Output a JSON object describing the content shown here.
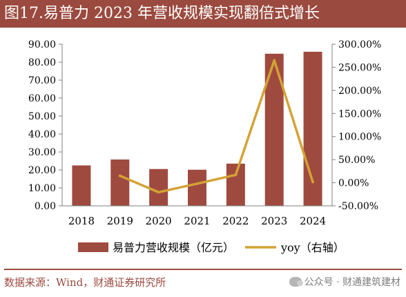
{
  "title": "图17.易普力 2023 年营收规模实现翻倍式增长",
  "source": "数据来源：Wind，财通证券研究所",
  "watermark": "公众号 · 财通建筑建材",
  "colors": {
    "bar": "#9f4a3f",
    "line": "#d4a235",
    "title_bg": "#9b4a3f"
  },
  "chart_data": {
    "type": "bar",
    "categories": [
      "2018",
      "2019",
      "2020",
      "2021",
      "2022",
      "2023",
      "2024"
    ],
    "series": [
      {
        "name": "易普力营收规模（亿元）",
        "type": "bar",
        "axis": "left",
        "values": [
          22.5,
          25.8,
          20.5,
          20.1,
          23.5,
          84.7,
          85.8
        ]
      },
      {
        "name": "yoy（右轴）",
        "type": "line",
        "axis": "right",
        "values": [
          null,
          15.0,
          -20.5,
          -2.0,
          17.0,
          265.0,
          1.5
        ]
      }
    ],
    "left_axis": {
      "ylim": [
        0,
        90
      ],
      "ticks": [
        "0.00",
        "10.00",
        "20.00",
        "30.00",
        "40.00",
        "50.00",
        "60.00",
        "70.00",
        "80.00",
        "90.00"
      ]
    },
    "right_axis": {
      "ylim": [
        -50,
        300
      ],
      "ticks": [
        "-50.00%",
        "0.00%",
        "50.00%",
        "100.00%",
        "150.00%",
        "200.00%",
        "250.00%",
        "300.00%"
      ]
    },
    "legend_position": "bottom",
    "grid": false
  }
}
